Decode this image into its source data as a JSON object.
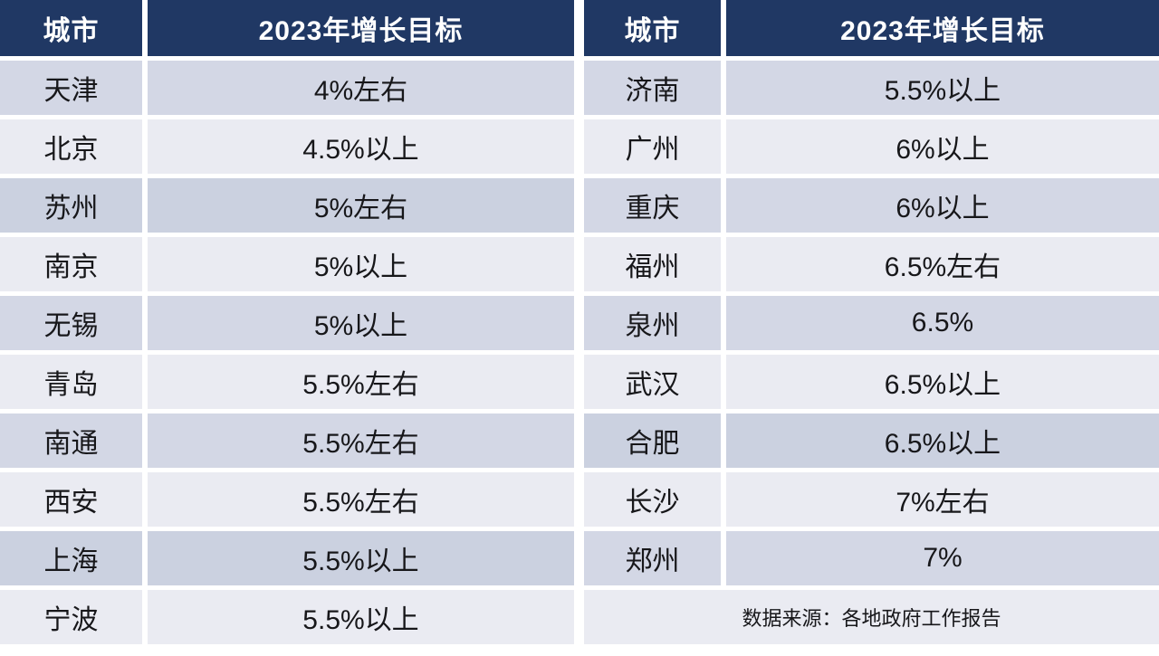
{
  "colors": {
    "header_bg": "#203864",
    "header_text": "#FFFFFF",
    "shade_a": "#D3D7E5",
    "shade_b": "#EAEBF2",
    "shade_c": "#CBD1E0",
    "body_text": "#17171A",
    "gap_bg": "#FFFFFF"
  },
  "tables": {
    "left": {
      "headers": {
        "city": "城市",
        "target": "2023年增长目标"
      },
      "rows": [
        {
          "city": "天津",
          "target": "4%左右",
          "shade": "a"
        },
        {
          "city": "北京",
          "target": "4.5%以上",
          "shade": "b"
        },
        {
          "city": "苏州",
          "target": "5%左右",
          "shade": "c"
        },
        {
          "city": "南京",
          "target": "5%以上",
          "shade": "b"
        },
        {
          "city": "无锡",
          "target": "5%以上",
          "shade": "a"
        },
        {
          "city": "青岛",
          "target": "5.5%左右",
          "shade": "b"
        },
        {
          "city": "南通",
          "target": "5.5%左右",
          "shade": "a"
        },
        {
          "city": "西安",
          "target": "5.5%左右",
          "shade": "b"
        },
        {
          "city": "上海",
          "target": "5.5%以上",
          "shade": "c"
        },
        {
          "city": "宁波",
          "target": "5.5%以上",
          "shade": "b"
        }
      ]
    },
    "right": {
      "headers": {
        "city": "城市",
        "target": "2023年增长目标"
      },
      "rows": [
        {
          "city": "济南",
          "target": "5.5%以上",
          "shade": "a"
        },
        {
          "city": "广州",
          "target": "6%以上",
          "shade": "b"
        },
        {
          "city": "重庆",
          "target": "6%以上",
          "shade": "a"
        },
        {
          "city": "福州",
          "target": "6.5%左右",
          "shade": "b"
        },
        {
          "city": "泉州",
          "target": "6.5%",
          "shade": "a"
        },
        {
          "city": "武汉",
          "target": "6.5%以上",
          "shade": "b"
        },
        {
          "city": "合肥",
          "target": "6.5%以上",
          "shade": "c"
        },
        {
          "city": "长沙",
          "target": "7%左右",
          "shade": "b"
        },
        {
          "city": "郑州",
          "target": "7%",
          "shade": "a"
        }
      ],
      "footer": {
        "source_note": "数据来源：各地政府工作报告",
        "shade": "b"
      }
    }
  },
  "chart_data": {
    "type": "table",
    "columns": [
      "城市",
      "2023年增长目标"
    ],
    "rows": [
      [
        "天津",
        "4%左右"
      ],
      [
        "北京",
        "4.5%以上"
      ],
      [
        "苏州",
        "5%左右"
      ],
      [
        "南京",
        "5%以上"
      ],
      [
        "无锡",
        "5%以上"
      ],
      [
        "青岛",
        "5.5%左右"
      ],
      [
        "南通",
        "5.5%左右"
      ],
      [
        "西安",
        "5.5%左右"
      ],
      [
        "上海",
        "5.5%以上"
      ],
      [
        "宁波",
        "5.5%以上"
      ],
      [
        "济南",
        "5.5%以上"
      ],
      [
        "广州",
        "6%以上"
      ],
      [
        "重庆",
        "6%以上"
      ],
      [
        "福州",
        "6.5%左右"
      ],
      [
        "泉州",
        "6.5%"
      ],
      [
        "武汉",
        "6.5%以上"
      ],
      [
        "合肥",
        "6.5%以上"
      ],
      [
        "长沙",
        "7%左右"
      ],
      [
        "郑州",
        "7%"
      ]
    ],
    "source": "数据来源：各地政府工作报告",
    "layout": "two side-by-side two-column tables, dark navy header row, alternating lavender/light row banding, white gaps as cell separators"
  }
}
